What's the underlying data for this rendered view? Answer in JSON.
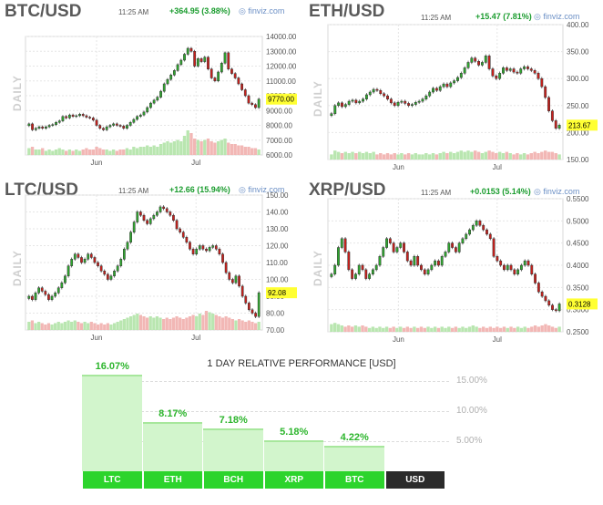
{
  "watermark": "finviz.com",
  "daily_label": "DAILY",
  "performance": {
    "title": "1 DAY RELATIVE PERFORMANCE  [USD]",
    "ticks": [
      "15.00%",
      "10.00%",
      "5.00%"
    ]
  },
  "chart_data": [
    {
      "type": "candlestick",
      "title": "BTC/USD",
      "time": "11:25 AM",
      "change": "+364.95 (3.88%)",
      "last_price_label": "9770.00",
      "last_price": 9770,
      "ylim": [
        6000,
        14000
      ],
      "yticks": [
        6000,
        7000,
        8000,
        9000,
        10000,
        11000,
        12000,
        13000,
        14000
      ],
      "ytick_labels": [
        "6000.00",
        "7000.00",
        "8000.00",
        "9000.00",
        "10000.00",
        "11000.00",
        "12000.00",
        "13000.00",
        "14000.00"
      ],
      "xticks": [
        "Jun",
        "Jul"
      ],
      "xtick_positions": [
        0.3,
        0.72
      ],
      "close": [
        8100,
        7700,
        7800,
        7900,
        7800,
        7900,
        8000,
        8050,
        8200,
        8300,
        8600,
        8500,
        8700,
        8600,
        8650,
        8750,
        8650,
        8550,
        8500,
        8350,
        8000,
        7800,
        7700,
        7900,
        8000,
        8100,
        8000,
        7950,
        7800,
        8000,
        8200,
        8400,
        8600,
        8700,
        8900,
        9200,
        9500,
        9700,
        9900,
        10300,
        10800,
        11100,
        11400,
        11700,
        12100,
        12400,
        12800,
        13200,
        13000,
        12000,
        12500,
        12300,
        12600,
        11800,
        11200,
        11000,
        11600,
        12200,
        12900,
        11800,
        11500,
        11200,
        10800,
        10400,
        10000,
        9500,
        9400,
        9200,
        9770
      ],
      "volume": [
        0.25,
        0.3,
        0.2,
        0.2,
        0.25,
        0.15,
        0.2,
        0.15,
        0.2,
        0.25,
        0.2,
        0.15,
        0.2,
        0.15,
        0.2,
        0.15,
        0.2,
        0.25,
        0.2,
        0.2,
        0.3,
        0.25,
        0.2,
        0.2,
        0.15,
        0.2,
        0.15,
        0.2,
        0.2,
        0.25,
        0.2,
        0.3,
        0.25,
        0.3,
        0.3,
        0.35,
        0.3,
        0.35,
        0.3,
        0.4,
        0.45,
        0.5,
        0.45,
        0.5,
        0.55,
        0.5,
        0.7,
        0.9,
        0.8,
        0.6,
        0.55,
        0.5,
        0.55,
        0.6,
        0.5,
        0.45,
        0.5,
        0.55,
        0.6,
        0.45,
        0.4,
        0.4,
        0.35,
        0.35,
        0.3,
        0.3,
        0.25,
        0.25,
        0.2
      ]
    },
    {
      "type": "candlestick",
      "title": "ETH/USD",
      "time": "11:25 AM",
      "change": "+15.47 (7.81%)",
      "last_price_label": "213.67",
      "last_price": 213.67,
      "ylim": [
        150,
        400
      ],
      "yticks": [
        150,
        200,
        250,
        300,
        350,
        400
      ],
      "ytick_labels": [
        "150.00",
        "200.00",
        "250.00",
        "300.00",
        "350.00",
        "400.00"
      ],
      "xticks": [
        "Jun",
        "Jul"
      ],
      "xtick_positions": [
        0.3,
        0.72
      ],
      "close": [
        235,
        250,
        255,
        248,
        252,
        258,
        260,
        255,
        258,
        262,
        270,
        275,
        280,
        278,
        272,
        268,
        262,
        255,
        250,
        256,
        258,
        254,
        250,
        252,
        256,
        258,
        262,
        268,
        275,
        282,
        278,
        285,
        290,
        285,
        292,
        296,
        302,
        310,
        320,
        330,
        338,
        332,
        325,
        330,
        342,
        318,
        305,
        300,
        310,
        320,
        315,
        318,
        312,
        310,
        318,
        322,
        318,
        315,
        310,
        300,
        285,
        265,
        240,
        222,
        208,
        213.67
      ],
      "volume": [
        0.2,
        0.35,
        0.3,
        0.25,
        0.3,
        0.25,
        0.3,
        0.25,
        0.3,
        0.25,
        0.3,
        0.25,
        0.3,
        0.2,
        0.25,
        0.2,
        0.25,
        0.2,
        0.25,
        0.2,
        0.25,
        0.2,
        0.25,
        0.2,
        0.25,
        0.2,
        0.2,
        0.25,
        0.2,
        0.25,
        0.2,
        0.25,
        0.3,
        0.25,
        0.3,
        0.25,
        0.3,
        0.35,
        0.3,
        0.35,
        0.3,
        0.35,
        0.3,
        0.25,
        0.3,
        0.35,
        0.3,
        0.25,
        0.3,
        0.25,
        0.3,
        0.25,
        0.2,
        0.25,
        0.2,
        0.25,
        0.2,
        0.25,
        0.3,
        0.25,
        0.3,
        0.35,
        0.3,
        0.3,
        0.25,
        0.2
      ]
    },
    {
      "type": "candlestick",
      "title": "LTC/USD",
      "time": "11:25 AM",
      "change": "+12.66 (15.94%)",
      "last_price_label": "92.08",
      "last_price": 92.08,
      "ylim": [
        70,
        150
      ],
      "yticks": [
        70,
        80,
        90,
        100,
        110,
        120,
        130,
        140,
        150
      ],
      "ytick_labels": [
        "70.00",
        "80.00",
        "90.00",
        "100.00",
        "110.00",
        "120.00",
        "130.00",
        "140.00",
        "150.00"
      ],
      "xticks": [
        "Jun",
        "Jul"
      ],
      "xtick_positions": [
        0.3,
        0.72
      ],
      "close": [
        90,
        88,
        92,
        95,
        93,
        91,
        88,
        90,
        92,
        95,
        98,
        102,
        108,
        112,
        115,
        113,
        110,
        112,
        115,
        113,
        110,
        108,
        105,
        103,
        100,
        102,
        105,
        108,
        112,
        118,
        122,
        128,
        134,
        140,
        138,
        135,
        133,
        136,
        138,
        140,
        143,
        142,
        140,
        138,
        135,
        130,
        128,
        125,
        122,
        118,
        115,
        118,
        120,
        118,
        117,
        119,
        120,
        118,
        115,
        110,
        104,
        100,
        98,
        102,
        96,
        90,
        86,
        82,
        80,
        78,
        92.08
      ],
      "volume": [
        0.3,
        0.35,
        0.25,
        0.3,
        0.25,
        0.2,
        0.25,
        0.2,
        0.25,
        0.3,
        0.25,
        0.3,
        0.35,
        0.3,
        0.35,
        0.3,
        0.25,
        0.3,
        0.25,
        0.3,
        0.25,
        0.2,
        0.25,
        0.2,
        0.25,
        0.2,
        0.25,
        0.3,
        0.35,
        0.4,
        0.45,
        0.5,
        0.55,
        0.6,
        0.55,
        0.5,
        0.45,
        0.5,
        0.45,
        0.5,
        0.45,
        0.4,
        0.45,
        0.4,
        0.45,
        0.5,
        0.45,
        0.4,
        0.45,
        0.5,
        0.55,
        0.5,
        0.6,
        0.55,
        0.7,
        0.65,
        0.6,
        0.55,
        0.5,
        0.45,
        0.5,
        0.45,
        0.4,
        0.35,
        0.4,
        0.35,
        0.3,
        0.35,
        0.3,
        0.25,
        0.3
      ]
    },
    {
      "type": "candlestick",
      "title": "XRP/USD",
      "time": "11:25 AM",
      "change": "+0.0153 (5.14%)",
      "last_price_label": "0.3128",
      "last_price": 0.3128,
      "ylim": [
        0.25,
        0.55
      ],
      "yticks": [
        0.25,
        0.3,
        0.35,
        0.4,
        0.45,
        0.5,
        0.55
      ],
      "ytick_labels": [
        "0.2500",
        "0.3000",
        "0.3500",
        "0.4000",
        "0.4500",
        "0.5000",
        "0.5500"
      ],
      "xticks": [
        "Jun",
        "Jul"
      ],
      "xtick_positions": [
        0.3,
        0.72
      ],
      "close": [
        0.38,
        0.4,
        0.44,
        0.46,
        0.43,
        0.39,
        0.37,
        0.38,
        0.4,
        0.39,
        0.37,
        0.38,
        0.39,
        0.4,
        0.42,
        0.44,
        0.46,
        0.45,
        0.43,
        0.44,
        0.45,
        0.43,
        0.41,
        0.4,
        0.42,
        0.4,
        0.39,
        0.38,
        0.39,
        0.4,
        0.41,
        0.4,
        0.42,
        0.43,
        0.45,
        0.44,
        0.43,
        0.45,
        0.46,
        0.47,
        0.48,
        0.49,
        0.5,
        0.49,
        0.48,
        0.47,
        0.46,
        0.42,
        0.41,
        0.4,
        0.39,
        0.4,
        0.39,
        0.38,
        0.39,
        0.4,
        0.41,
        0.4,
        0.38,
        0.36,
        0.34,
        0.33,
        0.32,
        0.31,
        0.3,
        0.2975,
        0.3128
      ],
      "volume": [
        0.3,
        0.35,
        0.3,
        0.25,
        0.2,
        0.25,
        0.2,
        0.25,
        0.2,
        0.25,
        0.2,
        0.15,
        0.2,
        0.15,
        0.2,
        0.15,
        0.2,
        0.15,
        0.2,
        0.15,
        0.2,
        0.15,
        0.2,
        0.15,
        0.2,
        0.15,
        0.2,
        0.15,
        0.2,
        0.15,
        0.2,
        0.15,
        0.2,
        0.15,
        0.2,
        0.15,
        0.2,
        0.15,
        0.2,
        0.15,
        0.2,
        0.25,
        0.2,
        0.15,
        0.2,
        0.15,
        0.2,
        0.15,
        0.2,
        0.15,
        0.2,
        0.15,
        0.2,
        0.15,
        0.2,
        0.15,
        0.2,
        0.15,
        0.2,
        0.25,
        0.2,
        0.25,
        0.3,
        0.25,
        0.2,
        0.15,
        0.2
      ]
    },
    {
      "type": "bar",
      "title": "1 DAY RELATIVE PERFORMANCE  [USD]",
      "categories": [
        "LTC",
        "ETH",
        "BCH",
        "XRP",
        "BTC",
        "USD"
      ],
      "values": [
        16.07,
        8.17,
        7.18,
        5.18,
        4.22,
        0
      ],
      "value_labels": [
        "16.07%",
        "8.17%",
        "7.18%",
        "5.18%",
        "4.22%",
        ""
      ],
      "ylim": [
        0,
        17
      ],
      "yticks": [
        5,
        10,
        15
      ],
      "ytick_labels": [
        "5.00%",
        "10.00%",
        "15.00%"
      ]
    }
  ]
}
